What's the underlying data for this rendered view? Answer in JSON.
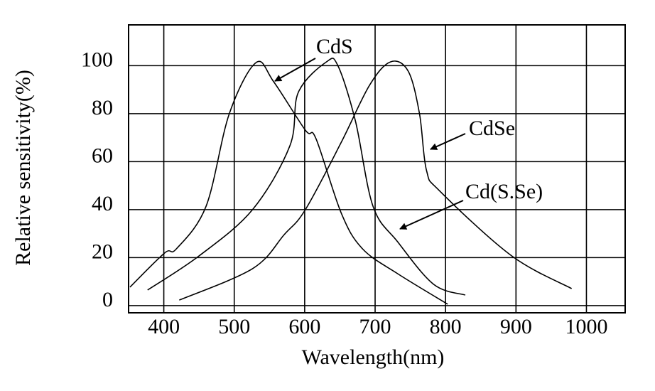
{
  "chart_data": {
    "type": "line",
    "xlabel": "Wavelength(nm)",
    "ylabel": "Relative sensitivity(%)",
    "xlim": [
      350,
      1055
    ],
    "ylim": [
      -3,
      117
    ],
    "xticks": [
      400,
      500,
      600,
      700,
      800,
      900,
      1000
    ],
    "yticks": [
      0,
      20,
      40,
      60,
      80,
      100
    ],
    "grid": true,
    "series": [
      {
        "name": "CdS",
        "color": "#000000",
        "x": [
          352,
          401,
          418,
          460,
          493,
          531,
          556,
          601,
          616,
          652,
          682,
          732,
          803
        ],
        "values": [
          7.7,
          21.9,
          23.7,
          41.4,
          80,
          101.3,
          93.3,
          73.1,
          69.6,
          38.5,
          23.7,
          13.3,
          0.6
        ]
      },
      {
        "name": "Cd(S.Se)",
        "color": "#000000",
        "x": [
          377,
          450,
          526,
          579,
          591,
          631,
          647,
          672,
          697,
          732,
          783,
          828
        ],
        "values": [
          6.5,
          20.7,
          40,
          66.6,
          88.9,
          101.6,
          100.1,
          77,
          41.4,
          26.6,
          8.9,
          4.4
        ]
      },
      {
        "name": "CdSe",
        "color": "#000000",
        "x": [
          422,
          526,
          571,
          601,
          652,
          692,
          722,
          747,
          763,
          773,
          793,
          894,
          979
        ],
        "values": [
          2.3,
          15.4,
          29.6,
          40,
          68.1,
          91.8,
          101.6,
          97.7,
          80,
          56.3,
          47.4,
          20.7,
          7.1
        ]
      }
    ]
  }
}
